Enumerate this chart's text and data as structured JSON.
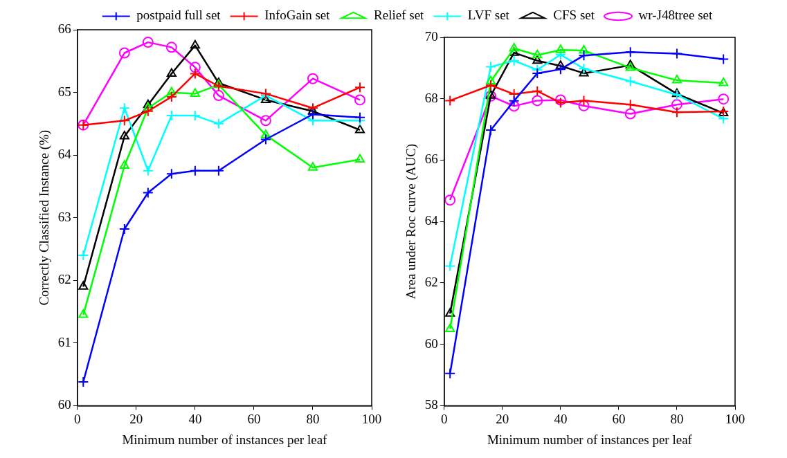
{
  "chart_data": [
    {
      "type": "line",
      "xlabel": "Minimum number of instances per leaf",
      "ylabel": "Correctly Classified Instance (%)",
      "x": [
        2,
        16,
        24,
        32,
        40,
        48,
        64,
        80,
        96
      ],
      "xlim": [
        0,
        100
      ],
      "xticks": [
        0,
        20,
        40,
        60,
        80,
        100
      ],
      "ylim": [
        60,
        66
      ],
      "yticks": [
        60,
        61,
        62,
        63,
        64,
        65,
        66
      ],
      "grid": false,
      "legend": "top",
      "series": [
        {
          "name": "postpaid full set",
          "color": "#0000ff",
          "marker": "cross",
          "values": [
            60.38,
            62.82,
            63.4,
            63.7,
            63.75,
            63.75,
            64.25,
            64.65,
            64.6
          ]
        },
        {
          "name": "InfoGain set",
          "color": "#ff0000",
          "marker": "cross",
          "values": [
            64.48,
            64.55,
            64.7,
            64.93,
            65.3,
            65.1,
            64.98,
            64.75,
            65.08
          ]
        },
        {
          "name": "Relief set",
          "color": "#00ff00",
          "marker": "triangle",
          "values": [
            61.45,
            63.83,
            64.75,
            65.0,
            64.98,
            65.12,
            64.32,
            63.8,
            63.93
          ]
        },
        {
          "name": "LVF set",
          "color": "#00ffff",
          "marker": "cross",
          "values": [
            62.4,
            64.75,
            63.75,
            64.63,
            64.63,
            64.5,
            64.95,
            64.55,
            64.55
          ]
        },
        {
          "name": "CFS set",
          "color": "#000000",
          "marker": "triangle",
          "values": [
            61.9,
            64.3,
            64.8,
            65.3,
            65.75,
            65.15,
            64.88,
            64.7,
            64.4
          ]
        },
        {
          "name": "wr-J48tree set",
          "color": "#ff00ff",
          "marker": "circle",
          "values": [
            64.48,
            65.63,
            65.8,
            65.72,
            65.4,
            64.95,
            64.55,
            65.22,
            64.88
          ]
        }
      ]
    },
    {
      "type": "line",
      "xlabel": "Minimum number of instances per leaf",
      "ylabel": "Area under Roc curve (AUC)",
      "x": [
        2,
        16,
        24,
        32,
        40,
        48,
        64,
        80,
        96
      ],
      "xlim": [
        0,
        100
      ],
      "xticks": [
        0,
        20,
        40,
        60,
        80,
        100
      ],
      "ylim": [
        58,
        70
      ],
      "yticks": [
        58,
        60,
        62,
        64,
        66,
        68,
        70
      ],
      "grid": false,
      "series": [
        {
          "color": "#0000ff",
          "marker": "cross",
          "values": [
            59.05,
            66.98,
            67.93,
            68.83,
            68.96,
            69.41,
            69.52,
            69.47,
            69.29
          ]
        },
        {
          "color": "#ff0000",
          "marker": "cross",
          "values": [
            67.94,
            68.44,
            68.15,
            68.25,
            67.87,
            67.94,
            67.81,
            67.56,
            67.59
          ]
        },
        {
          "color": "#00ff00",
          "marker": "triangle",
          "values": [
            60.5,
            68.57,
            69.64,
            69.42,
            69.59,
            69.57,
            69.01,
            68.6,
            68.51
          ]
        },
        {
          "color": "#00ffff",
          "marker": "cross",
          "values": [
            62.55,
            69.04,
            69.24,
            68.94,
            69.44,
            68.98,
            68.57,
            68.13,
            67.35
          ]
        },
        {
          "color": "#000000",
          "marker": "triangle",
          "values": [
            61.0,
            68.1,
            69.5,
            69.24,
            69.07,
            68.83,
            69.09,
            68.16,
            67.53
          ]
        },
        {
          "color": "#ff00ff",
          "marker": "circle",
          "values": [
            64.7,
            68.09,
            67.76,
            67.94,
            67.96,
            67.77,
            67.51,
            67.81,
            67.99
          ]
        }
      ]
    }
  ]
}
